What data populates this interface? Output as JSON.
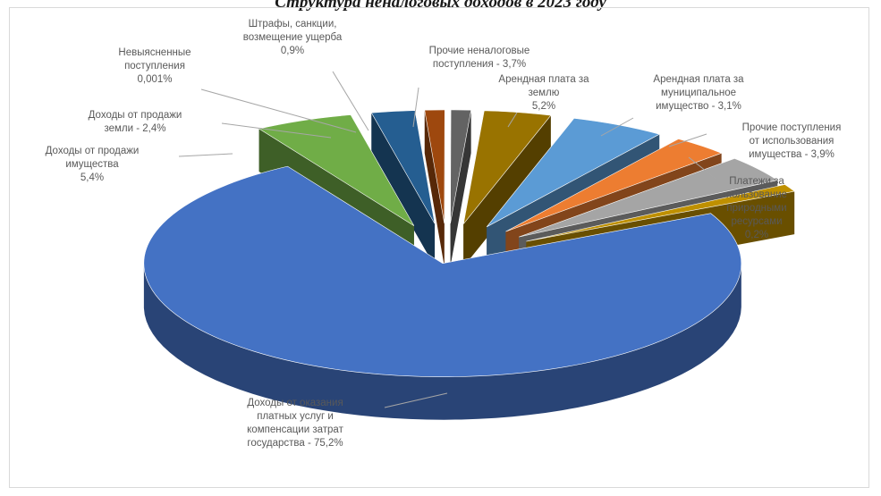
{
  "chart_data": {
    "type": "pie",
    "title": "Структура неналоговых доходов в 2023 году",
    "slices": [
      {
        "label_lines": [
          "Арендная плата за",
          "землю",
          "5,2%"
        ],
        "value": 5.2,
        "color": "#5b9bd5"
      },
      {
        "label_lines": [
          "Арендная плата за",
          "муниципальное",
          "имущество - 3,1%"
        ],
        "value": 3.1,
        "color": "#ed7d31"
      },
      {
        "label_lines": [
          "Прочие поступления",
          "от использования",
          "имущества - 3,9%"
        ],
        "value": 3.9,
        "color": "#a5a5a5"
      },
      {
        "label_lines": [
          "Платежи за",
          "пользование",
          "природными",
          "ресурсами",
          "0,2%"
        ],
        "value": 0.2,
        "color": "#bf9000"
      },
      {
        "label_lines": [
          "Доходы от оказания",
          "платных услуг и",
          "компенсации затрат",
          "государства - 75,2%"
        ],
        "value": 75.2,
        "color": "#4472c4"
      },
      {
        "label_lines": [
          "Доходы от продажи",
          "имущества",
          "5,4%"
        ],
        "value": 5.4,
        "color": "#70ad47"
      },
      {
        "label_lines": [
          "Доходы от продажи",
          "земли - 2,4%"
        ],
        "value": 2.4,
        "color": "#255e91"
      },
      {
        "label_lines": [
          "Невыясненные",
          "поступления",
          "0,001%"
        ],
        "value": 0.001,
        "color": "#9e480e"
      },
      {
        "label_lines": [
          "Штрафы, санкции,",
          "возмещение ущерба",
          "0,9%"
        ],
        "value": 0.9,
        "color": "#636363"
      },
      {
        "label_lines": [
          "Прочие неналоговые",
          "поступления - 3,7%"
        ],
        "value": 3.7,
        "color": "#997300"
      }
    ],
    "legend": "none",
    "style": "3d-exploded"
  }
}
